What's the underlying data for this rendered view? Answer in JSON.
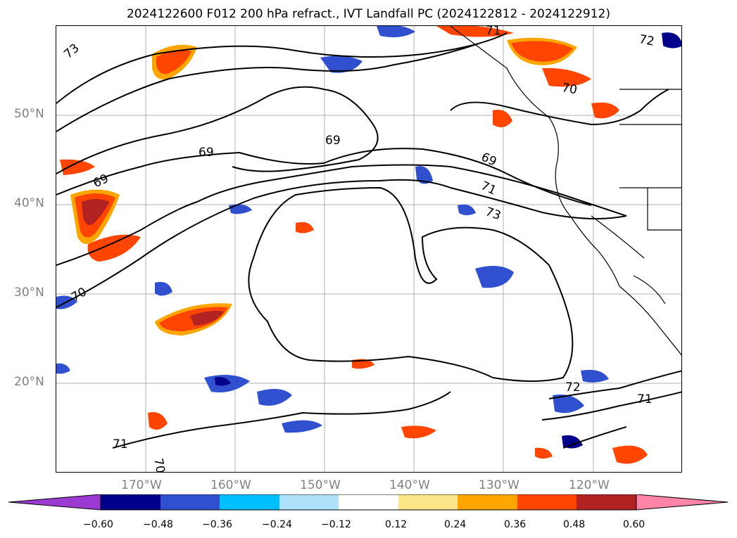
{
  "title": "2024122600 F012 200 hPa refract., IVT Landfall PC (2024122812 - 2024122912)",
  "lat_labels": [
    "50°N",
    "40°N",
    "30°N",
    "20°N"
  ],
  "lon_labels": [
    "170°W",
    "160°W",
    "150°W",
    "140°W",
    "130°W",
    "120°W"
  ],
  "contour_labels": [
    "73",
    "72",
    "69",
    "69",
    "69",
    "69",
    "70",
    "71",
    "71",
    "73",
    "70",
    "72",
    "71",
    "70",
    "71"
  ],
  "colorbar": {
    "ticks": [
      "−0.60",
      "−0.48",
      "−0.36",
      "−0.24",
      "−0.12",
      "0.12",
      "0.24",
      "0.36",
      "0.48",
      "0.60"
    ],
    "colors": [
      "#9a3ad0",
      "#00008b",
      "#3050d0",
      "#00bfff",
      "#aee2fa",
      "#ffffff",
      "#fde68a",
      "#ffa500",
      "#ff4500",
      "#b22222",
      "#ff85a8"
    ]
  },
  "fill_colors": {
    "pos_low": "#fde68a",
    "pos_mid": "#ffa500",
    "pos_high": "#ff4500",
    "pos_max": "#b22222",
    "neg_low": "#aee2fa",
    "neg_mid": "#00bfff",
    "neg_high": "#3050d0",
    "neg_max": "#00008b"
  }
}
